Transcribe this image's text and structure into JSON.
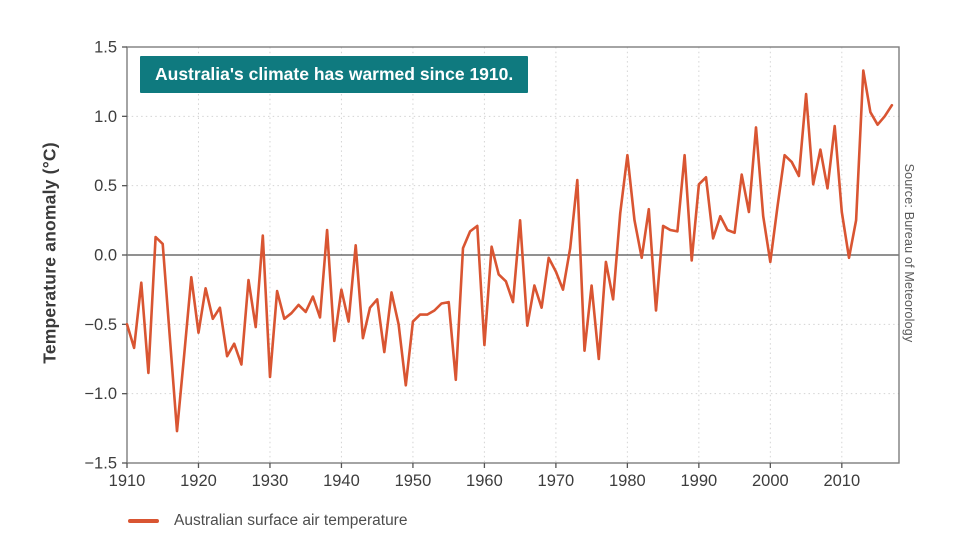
{
  "page": {
    "background": "#ffffff"
  },
  "annotation_box": {
    "text": "Australia's climate has warmed since 1910.",
    "bg_color": "#0f7a7f",
    "text_color": "#ffffff"
  },
  "y_axis": {
    "title": "Temperature anomaly (°C)",
    "tick_labels": [
      "1.5",
      "1.0",
      "0.5",
      "0.0",
      "−0.5",
      "−1.0",
      "−1.5"
    ]
  },
  "x_axis": {
    "tick_labels": [
      "1910",
      "1920",
      "1930",
      "1940",
      "1950",
      "1960",
      "1970",
      "1980",
      "1990",
      "2000",
      "2010"
    ]
  },
  "legend": {
    "items": [
      {
        "label": "Australian surface air temperature",
        "color": "#d95532"
      }
    ]
  },
  "source": {
    "text": "Source: Bureau of Meteorology"
  },
  "colors": {
    "line": "#d95532",
    "border": "#7d7d7d",
    "grid": "#d4d4d4",
    "zero_line": "#4f4f4f",
    "tick": "#555555",
    "tick_label": "#3d3d3d"
  },
  "chart_data": {
    "type": "line",
    "title": "Australia's climate has warmed since 1910.",
    "xlabel": "",
    "ylabel": "Temperature anomaly (°C)",
    "xlim": [
      1910,
      2018
    ],
    "ylim": [
      -1.5,
      1.5
    ],
    "x_ticks": [
      1910,
      1920,
      1930,
      1940,
      1950,
      1960,
      1970,
      1980,
      1990,
      2000,
      2010
    ],
    "y_ticks": [
      1.5,
      1.0,
      0.5,
      0.0,
      -0.5,
      -1.0,
      -1.5
    ],
    "grid": true,
    "zero_line": true,
    "legend_position": "bottom-left",
    "series": [
      {
        "name": "Australian surface air temperature",
        "color": "#d95532",
        "x": [
          1910,
          1911,
          1912,
          1913,
          1914,
          1915,
          1916,
          1917,
          1918,
          1919,
          1920,
          1921,
          1922,
          1923,
          1924,
          1925,
          1926,
          1927,
          1928,
          1929,
          1930,
          1931,
          1932,
          1933,
          1934,
          1935,
          1936,
          1937,
          1938,
          1939,
          1940,
          1941,
          1942,
          1943,
          1944,
          1945,
          1946,
          1947,
          1948,
          1949,
          1950,
          1951,
          1952,
          1953,
          1954,
          1955,
          1956,
          1957,
          1958,
          1959,
          1960,
          1961,
          1962,
          1963,
          1964,
          1965,
          1966,
          1967,
          1968,
          1969,
          1970,
          1971,
          1972,
          1973,
          1974,
          1975,
          1976,
          1977,
          1978,
          1979,
          1980,
          1981,
          1982,
          1983,
          1984,
          1985,
          1986,
          1987,
          1988,
          1989,
          1990,
          1991,
          1992,
          1993,
          1994,
          1995,
          1996,
          1997,
          1998,
          1999,
          2000,
          2001,
          2002,
          2003,
          2004,
          2005,
          2006,
          2007,
          2008,
          2009,
          2010,
          2011,
          2012,
          2013,
          2014,
          2015,
          2016,
          2017
        ],
        "y": [
          -0.5,
          -0.67,
          -0.2,
          -0.85,
          0.13,
          0.08,
          -0.6,
          -1.27,
          -0.72,
          -0.16,
          -0.56,
          -0.24,
          -0.46,
          -0.38,
          -0.73,
          -0.64,
          -0.79,
          -0.18,
          -0.52,
          0.14,
          -0.88,
          -0.26,
          -0.46,
          -0.42,
          -0.36,
          -0.41,
          -0.3,
          -0.45,
          0.18,
          -0.62,
          -0.25,
          -0.48,
          0.07,
          -0.6,
          -0.38,
          -0.32,
          -0.7,
          -0.27,
          -0.5,
          -0.94,
          -0.48,
          -0.43,
          -0.43,
          -0.4,
          -0.35,
          -0.34,
          -0.9,
          0.05,
          0.17,
          0.21,
          -0.65,
          0.06,
          -0.14,
          -0.19,
          -0.34,
          0.25,
          -0.51,
          -0.22,
          -0.38,
          -0.02,
          -0.12,
          -0.25,
          0.05,
          0.54,
          -0.69,
          -0.22,
          -0.75,
          -0.05,
          -0.32,
          0.3,
          0.72,
          0.25,
          -0.02,
          0.33,
          -0.4,
          0.21,
          0.18,
          0.17,
          0.72,
          -0.04,
          0.51,
          0.56,
          0.12,
          0.28,
          0.18,
          0.16,
          0.58,
          0.31,
          0.92,
          0.28,
          -0.05,
          0.35,
          0.72,
          0.67,
          0.57,
          1.16,
          0.51,
          0.76,
          0.48,
          0.93,
          0.31,
          -0.02,
          0.25,
          1.33,
          1.03,
          0.94,
          1.0,
          1.08
        ]
      }
    ]
  }
}
